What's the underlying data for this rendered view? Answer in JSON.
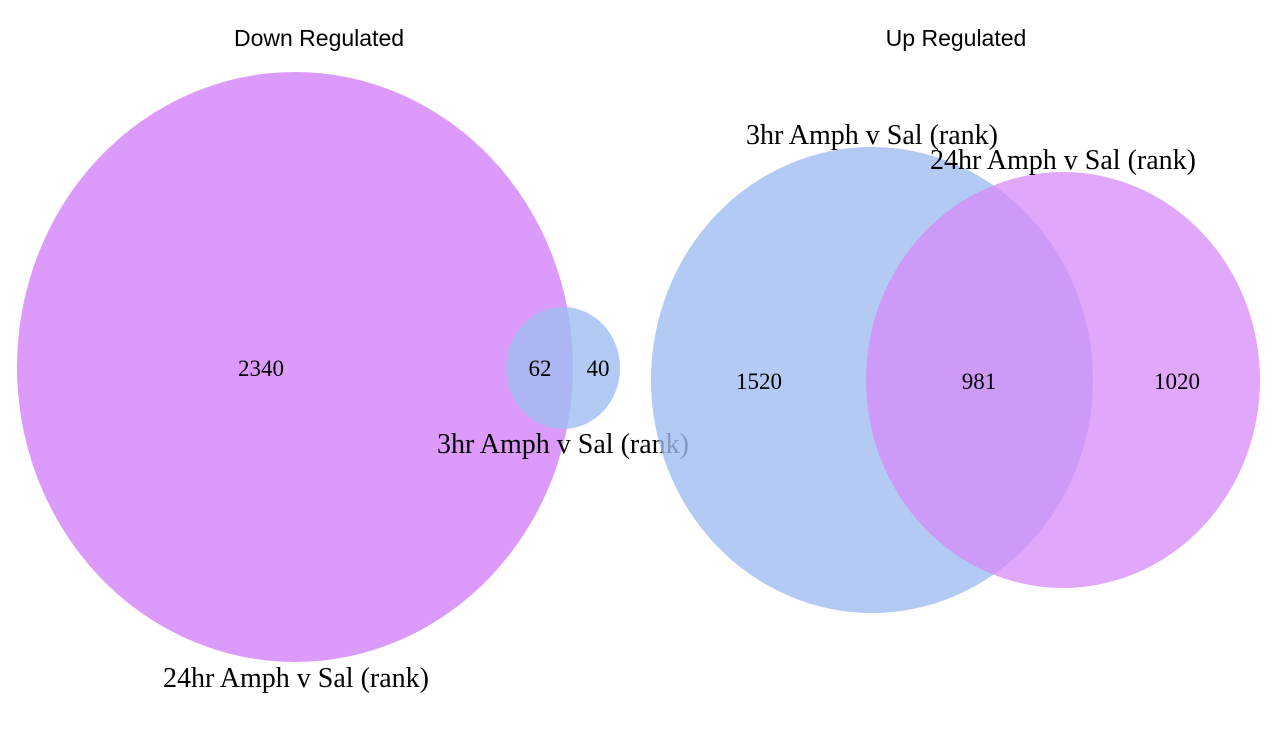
{
  "colors": {
    "set_3hr": "#9fbdf1",
    "set_24hr": "#d68af9"
  },
  "down": {
    "title": "Down Regulated",
    "set_24hr_label": "24hr Amph v Sal (rank)",
    "set_3hr_label": "3hr Amph v Sal (rank)",
    "only_24hr": "2340",
    "overlap": "62",
    "only_3hr": "40"
  },
  "up": {
    "title": "Up Regulated",
    "set_3hr_label": "3hr Amph v Sal (rank)",
    "set_24hr_label": "24hr Amph v Sal (rank)",
    "only_3hr": "1520",
    "overlap": "981",
    "only_24hr": "1020"
  }
}
